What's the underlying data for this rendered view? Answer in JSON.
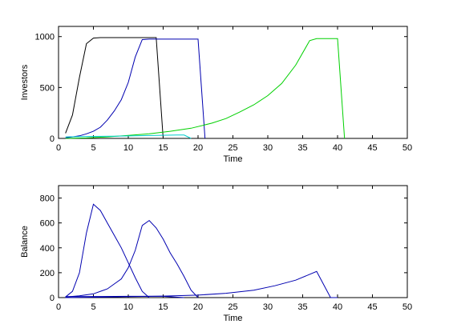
{
  "chart_data": [
    {
      "type": "line",
      "xlabel": "Time",
      "ylabel": "Investors",
      "xlim": [
        0,
        50
      ],
      "ylim": [
        0,
        1100
      ],
      "xticks": [
        0,
        5,
        10,
        15,
        20,
        25,
        30,
        35,
        40,
        45,
        50
      ],
      "yticks": [
        0,
        500,
        1000
      ],
      "series": [
        {
          "color": "#000000",
          "x": [
            1,
            2,
            3,
            4,
            5,
            6,
            7,
            8,
            9,
            10,
            11,
            12,
            13,
            14,
            15
          ],
          "y": [
            50,
            230,
            600,
            930,
            985,
            990,
            990,
            990,
            990,
            990,
            990,
            990,
            990,
            990,
            0
          ]
        },
        {
          "color": "#0000b0",
          "x": [
            1,
            2,
            3,
            4,
            5,
            6,
            7,
            8,
            9,
            10,
            11,
            12,
            13,
            14,
            15,
            16,
            17,
            18,
            19,
            20,
            21
          ],
          "y": [
            5,
            15,
            25,
            45,
            70,
            110,
            180,
            270,
            380,
            550,
            800,
            970,
            975,
            975,
            975,
            975,
            975,
            975,
            975,
            975,
            0
          ]
        },
        {
          "color": "#00d000",
          "x": [
            1,
            4,
            7,
            10,
            13,
            16,
            19,
            22,
            24,
            26,
            28,
            30,
            32,
            34,
            36,
            37,
            40,
            41
          ],
          "y": [
            0,
            5,
            15,
            30,
            45,
            70,
            100,
            150,
            195,
            260,
            330,
            420,
            540,
            720,
            960,
            980,
            980,
            0
          ]
        },
        {
          "color": "#00cccc",
          "x": [
            1,
            3,
            5,
            8,
            11,
            14,
            17,
            18,
            19
          ],
          "y": [
            15,
            18,
            20,
            22,
            25,
            30,
            33,
            33,
            0
          ]
        }
      ]
    },
    {
      "type": "line",
      "xlabel": "Time",
      "ylabel": "Balance",
      "xlim": [
        0,
        50
      ],
      "ylim": [
        0,
        900
      ],
      "xticks": [
        0,
        5,
        10,
        15,
        20,
        25,
        30,
        35,
        40,
        45,
        50
      ],
      "yticks": [
        0,
        200,
        400,
        600,
        800
      ],
      "series": [
        {
          "color": "#0000b0",
          "x": [
            1,
            2,
            3,
            4,
            5,
            6,
            7,
            8,
            9,
            10,
            11,
            12,
            13
          ],
          "y": [
            5,
            50,
            200,
            520,
            750,
            700,
            600,
            500,
            400,
            280,
            160,
            50,
            0
          ]
        },
        {
          "color": "#0000b0",
          "x": [
            1,
            3,
            5,
            7,
            9,
            10,
            11,
            12,
            13,
            14,
            15,
            16,
            17,
            18,
            19,
            20
          ],
          "y": [
            5,
            15,
            30,
            70,
            150,
            240,
            380,
            580,
            620,
            560,
            470,
            360,
            270,
            170,
            60,
            0
          ]
        },
        {
          "color": "#0000b0",
          "x": [
            1,
            5,
            10,
            15,
            20,
            24,
            28,
            31,
            34,
            37,
            39,
            40
          ],
          "y": [
            0,
            3,
            8,
            12,
            20,
            35,
            60,
            95,
            140,
            210,
            0,
            0
          ]
        },
        {
          "color": "#0000b0",
          "x": [
            1,
            10,
            15,
            18
          ],
          "y": [
            8,
            10,
            10,
            0
          ]
        }
      ]
    }
  ]
}
